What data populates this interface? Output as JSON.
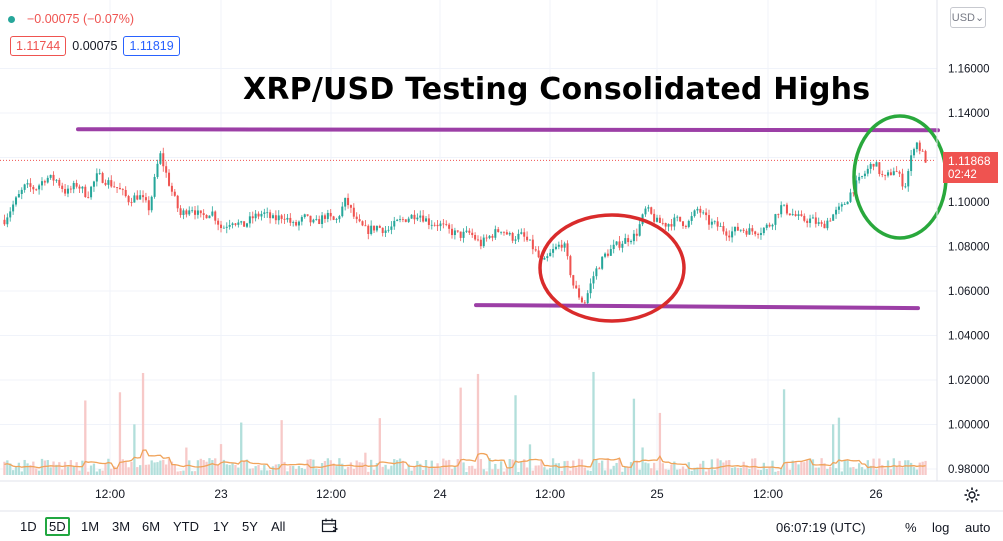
{
  "header": {
    "change": "−0.00075 (−0.07%)",
    "bid": "1.11744",
    "spread": "0.00075",
    "ask": "1.11819",
    "currency": "USD",
    "last_price": "1.11868",
    "countdown": "02:42"
  },
  "annotation_title": "XRP/USD Testing Consolidated Highs",
  "timeframes": [
    "1D",
    "5D",
    "1M",
    "3M",
    "6M",
    "YTD",
    "1Y",
    "5Y",
    "All"
  ],
  "active_timeframe": "5D",
  "clock": "06:07:19 (UTC)",
  "scale_buttons": {
    "percent": "%",
    "log": "log",
    "auto": "auto"
  },
  "colors": {
    "up": "#26a69a",
    "down": "#ef5350",
    "volume_ma": "#f0a35a",
    "support_resistance": "#9c3fa6",
    "circle_red": "#d92b2b",
    "circle_green": "#29a83c"
  },
  "chart_data": {
    "type": "candlestick",
    "title": "XRP/USD Testing Consolidated Highs",
    "x_tick_labels": [
      "12:00",
      "23",
      "12:00",
      "24",
      "12:00",
      "25",
      "12:00",
      "26"
    ],
    "y_tick_labels": [
      "1.16000",
      "1.14000",
      "1.12000",
      "1.10000",
      "1.08000",
      "1.06000",
      "1.04000",
      "1.02000",
      "1.00000",
      "0.98000"
    ],
    "ylim": [
      0.972,
      1.176
    ],
    "last_price": 1.11868,
    "price_path": [
      [
        0,
        1.092
      ],
      [
        2,
        1.1
      ],
      [
        4,
        1.107
      ],
      [
        6,
        1.106
      ],
      [
        8,
        1.111
      ],
      [
        10,
        1.11
      ],
      [
        12,
        1.104
      ],
      [
        14,
        1.108
      ],
      [
        16,
        1.103
      ],
      [
        18,
        1.112
      ],
      [
        20,
        1.109
      ],
      [
        22,
        1.106
      ],
      [
        24,
        1.101
      ],
      [
        26,
        1.103
      ],
      [
        28,
        1.097
      ],
      [
        30,
        1.122
      ],
      [
        32,
        1.107
      ],
      [
        34,
        1.094
      ],
      [
        36,
        1.098
      ],
      [
        38,
        1.093
      ],
      [
        40,
        1.096
      ],
      [
        42,
        1.088
      ],
      [
        44,
        1.092
      ],
      [
        46,
        1.089
      ],
      [
        48,
        1.093
      ],
      [
        50,
        1.095
      ],
      [
        52,
        1.092
      ],
      [
        54,
        1.094
      ],
      [
        56,
        1.089
      ],
      [
        58,
        1.093
      ],
      [
        60,
        1.09
      ],
      [
        62,
        1.094
      ],
      [
        64,
        1.091
      ],
      [
        66,
        1.101
      ],
      [
        68,
        1.091
      ],
      [
        70,
        1.087
      ],
      [
        72,
        1.089
      ],
      [
        74,
        1.087
      ],
      [
        76,
        1.091
      ],
      [
        78,
        1.093
      ],
      [
        80,
        1.095
      ],
      [
        82,
        1.091
      ],
      [
        84,
        1.09
      ],
      [
        86,
        1.087
      ],
      [
        88,
        1.085
      ],
      [
        90,
        1.086
      ],
      [
        92,
        1.081
      ],
      [
        94,
        1.085
      ],
      [
        96,
        1.088
      ],
      [
        98,
        1.084
      ],
      [
        100,
        1.085
      ],
      [
        102,
        1.08
      ],
      [
        104,
        1.072
      ],
      [
        106,
        1.078
      ],
      [
        108,
        1.082
      ],
      [
        110,
        1.062
      ],
      [
        112,
        1.054
      ],
      [
        114,
        1.068
      ],
      [
        116,
        1.076
      ],
      [
        118,
        1.08
      ],
      [
        120,
        1.083
      ],
      [
        122,
        1.085
      ],
      [
        124,
        1.097
      ],
      [
        126,
        1.091
      ],
      [
        128,
        1.09
      ],
      [
        130,
        1.092
      ],
      [
        132,
        1.09
      ],
      [
        134,
        1.097
      ],
      [
        136,
        1.091
      ],
      [
        138,
        1.089
      ],
      [
        140,
        1.086
      ],
      [
        142,
        1.088
      ],
      [
        144,
        1.087
      ],
      [
        146,
        1.087
      ],
      [
        148,
        1.09
      ],
      [
        150,
        1.098
      ],
      [
        152,
        1.095
      ],
      [
        154,
        1.092
      ],
      [
        156,
        1.092
      ],
      [
        158,
        1.089
      ],
      [
        160,
        1.094
      ],
      [
        162,
        1.098
      ],
      [
        164,
        1.106
      ],
      [
        166,
        1.112
      ],
      [
        168,
        1.118
      ],
      [
        170,
        1.11
      ],
      [
        172,
        1.115
      ],
      [
        174,
        1.107
      ],
      [
        176,
        1.128
      ],
      [
        178,
        1.119
      ]
    ],
    "annotations": {
      "resistance_level": 1.1327,
      "support_level": 1.053,
      "circles": [
        "red ellipse around dip to ~1.054",
        "green ellipse around breakout near highs"
      ]
    },
    "volume_overlay": true
  }
}
